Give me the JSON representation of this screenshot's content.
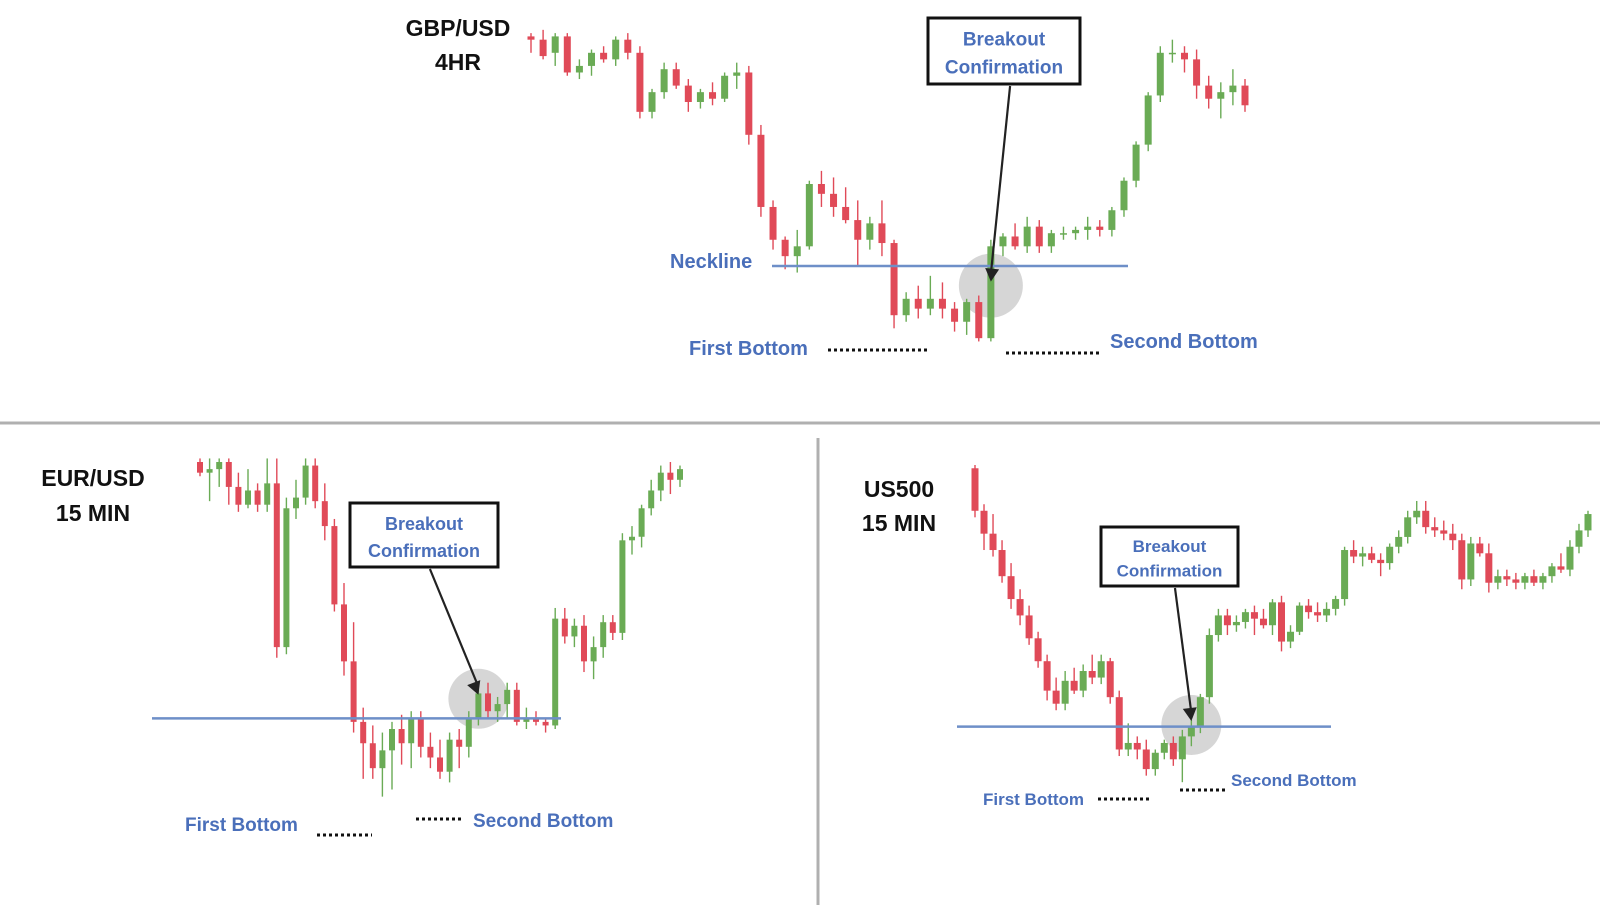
{
  "colors": {
    "bullish": "#6aab55",
    "bearish": "#e04a58",
    "neckline": "#6e8fc8",
    "label": "#4a6fba",
    "divider": "#b0b0b0",
    "highlight": "#b5b5b5",
    "annotation_border": "#111111",
    "dotted_marker": "#111111"
  },
  "chart_data": [
    {
      "type": "candlestick",
      "title_line1": "GBP/USD",
      "title_line2": "4HR",
      "annotations": {
        "breakout_line1": "Breakout",
        "breakout_line2": "Confirmation",
        "neckline": "Neckline",
        "first_bottom": "First Bottom",
        "second_bottom": "Second Bottom"
      },
      "y_range": [
        0,
        100
      ],
      "neckline_level": 25,
      "breakout_candle_index": 38,
      "first_bottom_index": 30,
      "second_bottom_index": 36,
      "candles": [
        {
          "o": 95,
          "h": 96,
          "l": 90,
          "c": 94
        },
        {
          "o": 94,
          "h": 97,
          "l": 88,
          "c": 89
        },
        {
          "o": 90,
          "h": 96,
          "l": 86,
          "c": 95
        },
        {
          "o": 95,
          "h": 96,
          "l": 83,
          "c": 84
        },
        {
          "o": 84,
          "h": 88,
          "l": 82,
          "c": 86
        },
        {
          "o": 86,
          "h": 91,
          "l": 83,
          "c": 90
        },
        {
          "o": 90,
          "h": 92,
          "l": 87,
          "c": 88
        },
        {
          "o": 88,
          "h": 95,
          "l": 86,
          "c": 94
        },
        {
          "o": 94,
          "h": 96,
          "l": 88,
          "c": 90
        },
        {
          "o": 90,
          "h": 92,
          "l": 70,
          "c": 72
        },
        {
          "o": 72,
          "h": 79,
          "l": 70,
          "c": 78
        },
        {
          "o": 78,
          "h": 87,
          "l": 76,
          "c": 85
        },
        {
          "o": 85,
          "h": 87,
          "l": 79,
          "c": 80
        },
        {
          "o": 80,
          "h": 82,
          "l": 72,
          "c": 75
        },
        {
          "o": 75,
          "h": 79,
          "l": 73,
          "c": 78
        },
        {
          "o": 78,
          "h": 81,
          "l": 74,
          "c": 76
        },
        {
          "o": 76,
          "h": 84,
          "l": 75,
          "c": 83
        },
        {
          "o": 83,
          "h": 87,
          "l": 79,
          "c": 84
        },
        {
          "o": 84,
          "h": 86,
          "l": 62,
          "c": 65
        },
        {
          "o": 65,
          "h": 68,
          "l": 40,
          "c": 43
        },
        {
          "o": 43,
          "h": 45,
          "l": 30,
          "c": 33
        },
        {
          "o": 33,
          "h": 34,
          "l": 24,
          "c": 28
        },
        {
          "o": 28,
          "h": 36,
          "l": 23,
          "c": 31
        },
        {
          "o": 31,
          "h": 51,
          "l": 30,
          "c": 50
        },
        {
          "o": 50,
          "h": 54,
          "l": 43,
          "c": 47
        },
        {
          "o": 47,
          "h": 52,
          "l": 40,
          "c": 43
        },
        {
          "o": 43,
          "h": 49,
          "l": 38,
          "c": 39
        },
        {
          "o": 39,
          "h": 45,
          "l": 25,
          "c": 33
        },
        {
          "o": 33,
          "h": 40,
          "l": 30,
          "c": 38
        },
        {
          "o": 38,
          "h": 45,
          "l": 28,
          "c": 32
        },
        {
          "o": 32,
          "h": 33,
          "l": 6,
          "c": 10
        },
        {
          "o": 10,
          "h": 17,
          "l": 8,
          "c": 15
        },
        {
          "o": 15,
          "h": 19,
          "l": 9,
          "c": 12
        },
        {
          "o": 12,
          "h": 22,
          "l": 10,
          "c": 15
        },
        {
          "o": 15,
          "h": 20,
          "l": 9,
          "c": 12
        },
        {
          "o": 12,
          "h": 14,
          "l": 5,
          "c": 8
        },
        {
          "o": 8,
          "h": 15,
          "l": 4,
          "c": 14
        },
        {
          "o": 14,
          "h": 16,
          "l": 2,
          "c": 3
        },
        {
          "o": 3,
          "h": 33,
          "l": 2,
          "c": 31
        },
        {
          "o": 31,
          "h": 35,
          "l": 28,
          "c": 34
        },
        {
          "o": 34,
          "h": 38,
          "l": 30,
          "c": 31
        },
        {
          "o": 31,
          "h": 40,
          "l": 29,
          "c": 37
        },
        {
          "o": 37,
          "h": 39,
          "l": 29,
          "c": 31
        },
        {
          "o": 31,
          "h": 36,
          "l": 29,
          "c": 35
        },
        {
          "o": 35,
          "h": 37,
          "l": 33,
          "c": 35
        },
        {
          "o": 35,
          "h": 37,
          "l": 33,
          "c": 36
        },
        {
          "o": 36,
          "h": 40,
          "l": 33,
          "c": 37
        },
        {
          "o": 37,
          "h": 39,
          "l": 34,
          "c": 36
        },
        {
          "o": 36,
          "h": 43,
          "l": 34,
          "c": 42
        },
        {
          "o": 42,
          "h": 52,
          "l": 40,
          "c": 51
        },
        {
          "o": 51,
          "h": 63,
          "l": 49,
          "c": 62
        },
        {
          "o": 62,
          "h": 78,
          "l": 60,
          "c": 77
        },
        {
          "o": 77,
          "h": 92,
          "l": 75,
          "c": 90
        },
        {
          "o": 90,
          "h": 94,
          "l": 87,
          "c": 90
        },
        {
          "o": 90,
          "h": 92,
          "l": 84,
          "c": 88
        },
        {
          "o": 88,
          "h": 91,
          "l": 76,
          "c": 80
        },
        {
          "o": 80,
          "h": 83,
          "l": 73,
          "c": 76
        },
        {
          "o": 76,
          "h": 81,
          "l": 70,
          "c": 78
        },
        {
          "o": 78,
          "h": 85,
          "l": 74,
          "c": 80
        },
        {
          "o": 80,
          "h": 82,
          "l": 72,
          "c": 74
        }
      ]
    },
    {
      "type": "candlestick",
      "title_line1": "EUR/USD",
      "title_line2": "15 MIN",
      "annotations": {
        "breakout_line1": "Breakout",
        "breakout_line2": "Confirmation",
        "first_bottom": "First Bottom",
        "second_bottom": "Second Bottom"
      },
      "y_range": [
        0,
        100
      ],
      "neckline_level": 28,
      "breakout_candle_index": 29,
      "first_bottom_index": 20,
      "second_bottom_index": 25,
      "candles": [
        {
          "o": 100,
          "h": 101,
          "l": 96,
          "c": 97
        },
        {
          "o": 97,
          "h": 101,
          "l": 89,
          "c": 98
        },
        {
          "o": 98,
          "h": 101,
          "l": 93,
          "c": 100
        },
        {
          "o": 100,
          "h": 101,
          "l": 88,
          "c": 93
        },
        {
          "o": 93,
          "h": 97,
          "l": 86,
          "c": 88
        },
        {
          "o": 88,
          "h": 98,
          "l": 87,
          "c": 92
        },
        {
          "o": 92,
          "h": 94,
          "l": 86,
          "c": 88
        },
        {
          "o": 88,
          "h": 101,
          "l": 86,
          "c": 94
        },
        {
          "o": 94,
          "h": 101,
          "l": 45,
          "c": 48
        },
        {
          "o": 48,
          "h": 90,
          "l": 46,
          "c": 87
        },
        {
          "o": 87,
          "h": 95,
          "l": 84,
          "c": 90
        },
        {
          "o": 90,
          "h": 101,
          "l": 88,
          "c": 99
        },
        {
          "o": 99,
          "h": 101,
          "l": 87,
          "c": 89
        },
        {
          "o": 89,
          "h": 94,
          "l": 78,
          "c": 82
        },
        {
          "o": 82,
          "h": 84,
          "l": 58,
          "c": 60
        },
        {
          "o": 60,
          "h": 66,
          "l": 40,
          "c": 44
        },
        {
          "o": 44,
          "h": 55,
          "l": 24,
          "c": 27
        },
        {
          "o": 27,
          "h": 31,
          "l": 11,
          "c": 21
        },
        {
          "o": 21,
          "h": 26,
          "l": 11,
          "c": 14
        },
        {
          "o": 14,
          "h": 24,
          "l": 6,
          "c": 19
        },
        {
          "o": 19,
          "h": 27,
          "l": 8,
          "c": 25
        },
        {
          "o": 25,
          "h": 29,
          "l": 15,
          "c": 21
        },
        {
          "o": 21,
          "h": 30,
          "l": 14,
          "c": 28
        },
        {
          "o": 28,
          "h": 30,
          "l": 17,
          "c": 20
        },
        {
          "o": 20,
          "h": 24,
          "l": 14,
          "c": 17
        },
        {
          "o": 17,
          "h": 22,
          "l": 11,
          "c": 13
        },
        {
          "o": 13,
          "h": 24,
          "l": 10,
          "c": 22
        },
        {
          "o": 22,
          "h": 25,
          "l": 14,
          "c": 20
        },
        {
          "o": 20,
          "h": 30,
          "l": 17,
          "c": 28
        },
        {
          "o": 28,
          "h": 36,
          "l": 26,
          "c": 35
        },
        {
          "o": 35,
          "h": 38,
          "l": 28,
          "c": 30
        },
        {
          "o": 30,
          "h": 34,
          "l": 27,
          "c": 32
        },
        {
          "o": 32,
          "h": 38,
          "l": 28,
          "c": 36
        },
        {
          "o": 36,
          "h": 38,
          "l": 26,
          "c": 27
        },
        {
          "o": 27,
          "h": 31,
          "l": 25,
          "c": 28
        },
        {
          "o": 28,
          "h": 30,
          "l": 26,
          "c": 27
        },
        {
          "o": 27,
          "h": 28,
          "l": 24,
          "c": 26
        },
        {
          "o": 26,
          "h": 59,
          "l": 25,
          "c": 56
        },
        {
          "o": 56,
          "h": 59,
          "l": 49,
          "c": 51
        },
        {
          "o": 51,
          "h": 56,
          "l": 48,
          "c": 54
        },
        {
          "o": 54,
          "h": 57,
          "l": 41,
          "c": 44
        },
        {
          "o": 44,
          "h": 51,
          "l": 39,
          "c": 48
        },
        {
          "o": 48,
          "h": 57,
          "l": 45,
          "c": 55
        },
        {
          "o": 55,
          "h": 57,
          "l": 50,
          "c": 52
        },
        {
          "o": 52,
          "h": 80,
          "l": 50,
          "c": 78
        },
        {
          "o": 78,
          "h": 82,
          "l": 74,
          "c": 79
        },
        {
          "o": 79,
          "h": 88,
          "l": 76,
          "c": 87
        },
        {
          "o": 87,
          "h": 95,
          "l": 85,
          "c": 92
        },
        {
          "o": 92,
          "h": 99,
          "l": 89,
          "c": 97
        },
        {
          "o": 97,
          "h": 100,
          "l": 91,
          "c": 95
        },
        {
          "o": 95,
          "h": 99,
          "l": 93,
          "c": 98
        }
      ]
    },
    {
      "type": "candlestick",
      "title_line1": "US500",
      "title_line2": "15 MIN",
      "annotations": {
        "breakout_line1": "Breakout",
        "breakout_line2": "Confirmation",
        "first_bottom": "First Bottom",
        "second_bottom": "Second Bottom"
      },
      "y_range": [
        0,
        100
      ],
      "neckline_level": 20,
      "breakout_candle_index": 24,
      "first_bottom_index": 16,
      "second_bottom_index": 22,
      "candles": [
        {
          "o": 99,
          "h": 100,
          "l": 84,
          "c": 86
        },
        {
          "o": 86,
          "h": 88,
          "l": 74,
          "c": 79
        },
        {
          "o": 79,
          "h": 85,
          "l": 72,
          "c": 74
        },
        {
          "o": 74,
          "h": 77,
          "l": 64,
          "c": 66
        },
        {
          "o": 66,
          "h": 70,
          "l": 56,
          "c": 59
        },
        {
          "o": 59,
          "h": 62,
          "l": 51,
          "c": 54
        },
        {
          "o": 54,
          "h": 57,
          "l": 45,
          "c": 47
        },
        {
          "o": 47,
          "h": 49,
          "l": 38,
          "c": 40
        },
        {
          "o": 40,
          "h": 42,
          "l": 28,
          "c": 31
        },
        {
          "o": 31,
          "h": 35,
          "l": 25,
          "c": 27
        },
        {
          "o": 27,
          "h": 37,
          "l": 25,
          "c": 34
        },
        {
          "o": 34,
          "h": 38,
          "l": 30,
          "c": 31
        },
        {
          "o": 31,
          "h": 39,
          "l": 29,
          "c": 37
        },
        {
          "o": 37,
          "h": 42,
          "l": 33,
          "c": 35
        },
        {
          "o": 35,
          "h": 42,
          "l": 33,
          "c": 40
        },
        {
          "o": 40,
          "h": 41,
          "l": 27,
          "c": 29
        },
        {
          "o": 29,
          "h": 31,
          "l": 11,
          "c": 13
        },
        {
          "o": 13,
          "h": 21,
          "l": 11,
          "c": 15
        },
        {
          "o": 15,
          "h": 17,
          "l": 10,
          "c": 13
        },
        {
          "o": 13,
          "h": 16,
          "l": 5,
          "c": 7
        },
        {
          "o": 7,
          "h": 13,
          "l": 5,
          "c": 12
        },
        {
          "o": 12,
          "h": 16,
          "l": 10,
          "c": 15
        },
        {
          "o": 15,
          "h": 17,
          "l": 8,
          "c": 10
        },
        {
          "o": 10,
          "h": 19,
          "l": 3,
          "c": 17
        },
        {
          "o": 17,
          "h": 22,
          "l": 14,
          "c": 20
        },
        {
          "o": 20,
          "h": 30,
          "l": 18,
          "c": 29
        },
        {
          "o": 29,
          "h": 50,
          "l": 27,
          "c": 48
        },
        {
          "o": 48,
          "h": 56,
          "l": 46,
          "c": 54
        },
        {
          "o": 54,
          "h": 56,
          "l": 48,
          "c": 51
        },
        {
          "o": 51,
          "h": 54,
          "l": 49,
          "c": 52
        },
        {
          "o": 52,
          "h": 56,
          "l": 50,
          "c": 55
        },
        {
          "o": 55,
          "h": 57,
          "l": 48,
          "c": 53
        },
        {
          "o": 53,
          "h": 56,
          "l": 50,
          "c": 51
        },
        {
          "o": 51,
          "h": 59,
          "l": 48,
          "c": 58
        },
        {
          "o": 58,
          "h": 60,
          "l": 43,
          "c": 46
        },
        {
          "o": 46,
          "h": 51,
          "l": 44,
          "c": 49
        },
        {
          "o": 49,
          "h": 58,
          "l": 48,
          "c": 57
        },
        {
          "o": 57,
          "h": 59,
          "l": 53,
          "c": 55
        },
        {
          "o": 55,
          "h": 58,
          "l": 52,
          "c": 54
        },
        {
          "o": 54,
          "h": 58,
          "l": 52,
          "c": 56
        },
        {
          "o": 56,
          "h": 60,
          "l": 54,
          "c": 59
        },
        {
          "o": 59,
          "h": 75,
          "l": 57,
          "c": 74
        },
        {
          "o": 74,
          "h": 77,
          "l": 70,
          "c": 72
        },
        {
          "o": 72,
          "h": 75,
          "l": 69,
          "c": 73
        },
        {
          "o": 73,
          "h": 75,
          "l": 70,
          "c": 71
        },
        {
          "o": 71,
          "h": 73,
          "l": 66,
          "c": 70
        },
        {
          "o": 70,
          "h": 76,
          "l": 68,
          "c": 75
        },
        {
          "o": 75,
          "h": 80,
          "l": 73,
          "c": 78
        },
        {
          "o": 78,
          "h": 86,
          "l": 76,
          "c": 84
        },
        {
          "o": 84,
          "h": 89,
          "l": 82,
          "c": 86
        },
        {
          "o": 86,
          "h": 89,
          "l": 79,
          "c": 81
        },
        {
          "o": 81,
          "h": 84,
          "l": 78,
          "c": 80
        },
        {
          "o": 80,
          "h": 83,
          "l": 77,
          "c": 79
        },
        {
          "o": 79,
          "h": 82,
          "l": 74,
          "c": 77
        },
        {
          "o": 77,
          "h": 79,
          "l": 62,
          "c": 65
        },
        {
          "o": 65,
          "h": 78,
          "l": 63,
          "c": 76
        },
        {
          "o": 76,
          "h": 78,
          "l": 72,
          "c": 73
        },
        {
          "o": 73,
          "h": 76,
          "l": 61,
          "c": 64
        },
        {
          "o": 64,
          "h": 68,
          "l": 62,
          "c": 66
        },
        {
          "o": 66,
          "h": 68,
          "l": 63,
          "c": 65
        },
        {
          "o": 65,
          "h": 67,
          "l": 62,
          "c": 64
        },
        {
          "o": 64,
          "h": 67,
          "l": 62,
          "c": 66
        },
        {
          "o": 66,
          "h": 68,
          "l": 63,
          "c": 64
        },
        {
          "o": 64,
          "h": 67,
          "l": 62,
          "c": 66
        },
        {
          "o": 66,
          "h": 70,
          "l": 64,
          "c": 69
        },
        {
          "o": 69,
          "h": 73,
          "l": 67,
          "c": 68
        },
        {
          "o": 68,
          "h": 77,
          "l": 66,
          "c": 75
        },
        {
          "o": 75,
          "h": 82,
          "l": 73,
          "c": 80
        },
        {
          "o": 80,
          "h": 86,
          "l": 78,
          "c": 85
        }
      ]
    }
  ]
}
